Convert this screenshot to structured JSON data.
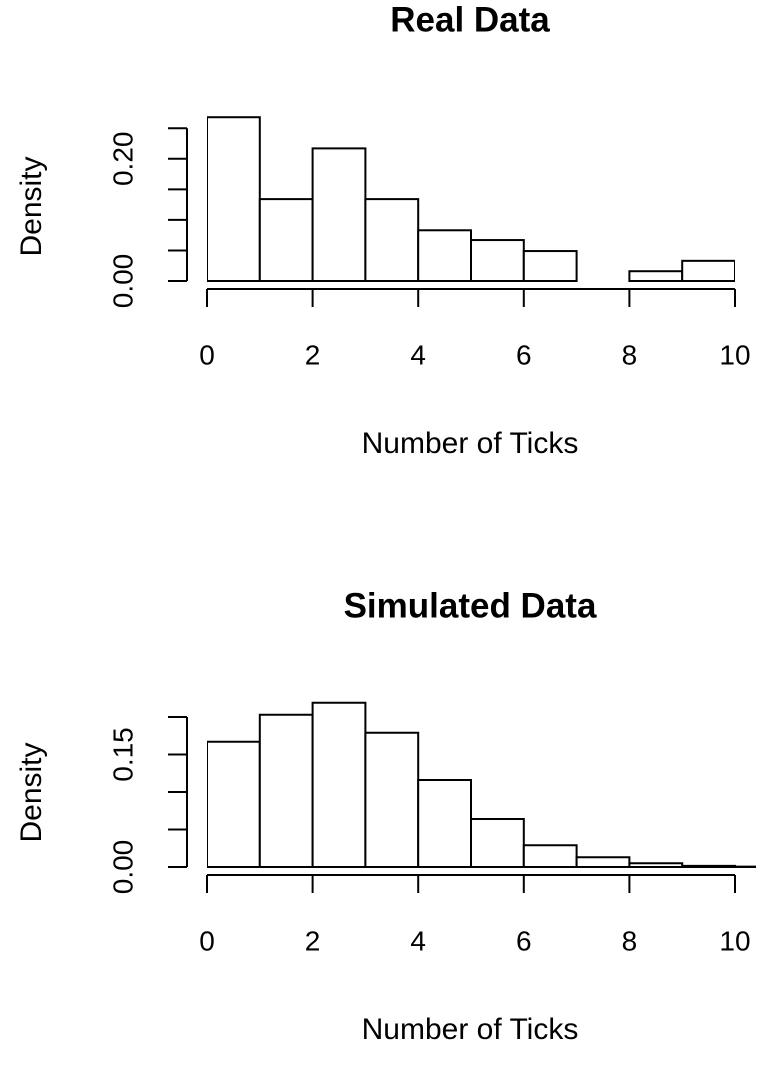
{
  "chart_data": [
    {
      "type": "histogram",
      "title": "Real Data",
      "xlabel": "Number of Ticks",
      "ylabel": "Density",
      "bins": [
        0,
        1,
        2,
        3,
        4,
        5,
        6,
        7,
        8,
        9,
        10
      ],
      "values": [
        0.268,
        0.134,
        0.217,
        0.134,
        0.083,
        0.067,
        0.049,
        0,
        0.016,
        0.033
      ],
      "color": "#ffffff",
      "xlim": [
        0,
        10
      ],
      "xticks": [
        0,
        2,
        4,
        6,
        8,
        10
      ],
      "ylim": [
        0,
        0.27
      ],
      "yticks": [
        {
          "value": 0,
          "label": "0.00"
        },
        {
          "value": 0.2,
          "label": "0.20"
        }
      ],
      "yticks_unlabeled": [
        0.05,
        0.1,
        0.15,
        0.25
      ]
    },
    {
      "type": "histogram",
      "title": "Simulated Data",
      "xlabel": "Number of Ticks",
      "ylabel": "Density",
      "bins": [
        0,
        1,
        2,
        3,
        4,
        5,
        6,
        7,
        8,
        9,
        10,
        11
      ],
      "values": [
        0.167,
        0.203,
        0.219,
        0.179,
        0.116,
        0.064,
        0.029,
        0.013,
        0.005,
        0.0015,
        0.0005
      ],
      "color": "#ffffff",
      "xlim": [
        0,
        10.4
      ],
      "xticks": [
        0,
        2,
        4,
        6,
        8,
        10
      ],
      "ylim": [
        0,
        0.22
      ],
      "yticks": [
        {
          "value": 0,
          "label": "0.00"
        },
        {
          "value": 0.15,
          "label": "0.15"
        }
      ],
      "yticks_unlabeled": [
        0.05,
        0.1,
        0.2
      ]
    }
  ]
}
